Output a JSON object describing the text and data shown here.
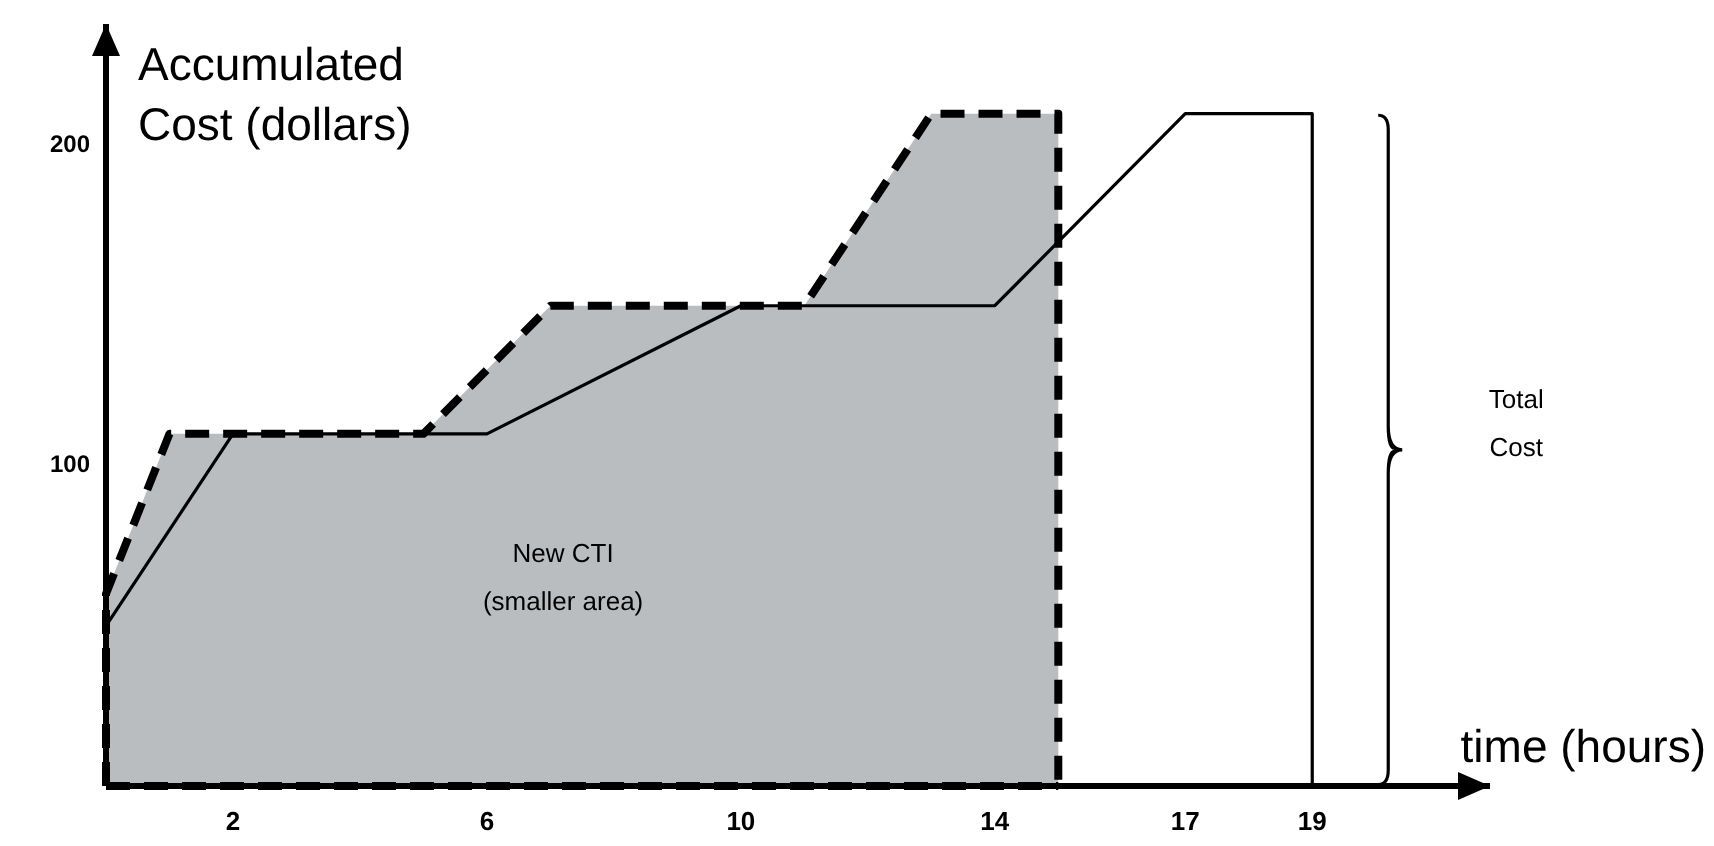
{
  "chart_data": {
    "type": "line",
    "xlabel": "time (hours)",
    "ylabel": "Accumulated Cost (dollars)",
    "annotations": [
      "New CTI (smaller area)",
      "Total Cost"
    ],
    "xlim": [
      0,
      21.8
    ],
    "ylim": [
      0,
      238
    ],
    "xticks": [
      2,
      6,
      10,
      14,
      17,
      19
    ],
    "yticks": [
      100,
      200
    ],
    "grid": false,
    "marker": "none",
    "series": [
      {
        "type": "area",
        "color": "#b9bdc0",
        "line_style": "dashed",
        "x": [
          0,
          0,
          1,
          5,
          7,
          11,
          13,
          15,
          15
        ],
        "values": [
          0,
          60,
          110,
          110,
          150,
          150,
          210,
          210,
          0
        ]
      },
      {
        "type": "line",
        "color": "#000000",
        "line_style": "solid",
        "x": [
          0,
          2,
          6,
          10,
          14,
          17,
          19,
          19
        ],
        "values": [
          50,
          110,
          110,
          150,
          150,
          210,
          210,
          0
        ]
      }
    ]
  }
}
